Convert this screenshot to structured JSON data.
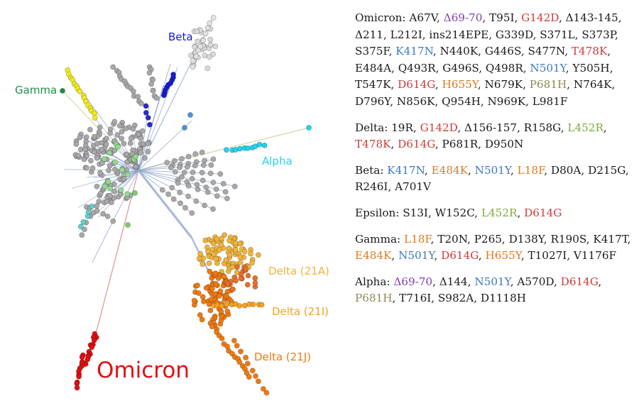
{
  "colors": {
    "default": "#1a1a1a",
    "red": "#cc3b3b",
    "blue": "#3b78c2",
    "purple": "#7a3fb0",
    "orange": "#e07a1e",
    "olive": "#8e8a55",
    "green": "#7dab3a",
    "alpha": "#22d3f0",
    "beta": "#1a1ad6",
    "gamma": "#1f8f4a",
    "delta_light": "#f0b43a",
    "delta_mid": "#f5a21f",
    "delta_dark": "#f07a10",
    "omicron": "#e11010",
    "yellow": "#f2ea1a",
    "node_gray": "#a8a8a8",
    "branch": "#8da3c9"
  },
  "tree": {
    "labels": {
      "beta": "Beta",
      "gamma": "Gamma",
      "alpha": "Alpha",
      "delta_21a": "Delta (21A)",
      "delta_21i": "Delta (21I)",
      "delta_21j": "Delta (21J)",
      "omicron": "Omicron"
    }
  },
  "variants": [
    {
      "name": "Omicron",
      "mutations": [
        {
          "text": "A67V",
          "color": "default"
        },
        {
          "text": "Δ69-70",
          "color": "purple"
        },
        {
          "text": "T95I",
          "color": "default"
        },
        {
          "text": "G142D",
          "color": "red"
        },
        {
          "text": "Δ143-145",
          "color": "default"
        },
        {
          "text": "Δ211",
          "color": "default"
        },
        {
          "text": "L212I",
          "color": "default"
        },
        {
          "text": "ins214EPE",
          "color": "default"
        },
        {
          "text": "G339D",
          "color": "default"
        },
        {
          "text": "S371L",
          "color": "default"
        },
        {
          "text": "S373P",
          "color": "default"
        },
        {
          "text": "S375F",
          "color": "default"
        },
        {
          "text": "K417N",
          "color": "blue"
        },
        {
          "text": "N440K",
          "color": "default"
        },
        {
          "text": "G446S",
          "color": "default"
        },
        {
          "text": "S477N",
          "color": "default"
        },
        {
          "text": "T478K",
          "color": "red"
        },
        {
          "text": "E484A",
          "color": "default"
        },
        {
          "text": "Q493R",
          "color": "default"
        },
        {
          "text": "G496S",
          "color": "default"
        },
        {
          "text": "Q498R",
          "color": "default"
        },
        {
          "text": "N501Y",
          "color": "blue"
        },
        {
          "text": "Y505H",
          "color": "default"
        },
        {
          "text": "T547K",
          "color": "default"
        },
        {
          "text": "D614G",
          "color": "red"
        },
        {
          "text": "H655Y",
          "color": "orange"
        },
        {
          "text": "N679K",
          "color": "default"
        },
        {
          "text": "P681H",
          "color": "olive"
        },
        {
          "text": "N764K",
          "color": "default"
        },
        {
          "text": "D796Y",
          "color": "default"
        },
        {
          "text": "N856K",
          "color": "default"
        },
        {
          "text": "Q954H",
          "color": "default"
        },
        {
          "text": "N969K",
          "color": "default"
        },
        {
          "text": "L981F",
          "color": "default"
        }
      ]
    },
    {
      "name": "Delta",
      "mutations": [
        {
          "text": "19R",
          "color": "default"
        },
        {
          "text": "G142D",
          "color": "red"
        },
        {
          "text": "Δ156-157",
          "color": "default"
        },
        {
          "text": "R158G",
          "color": "default"
        },
        {
          "text": "L452R",
          "color": "green"
        },
        {
          "text": "T478K",
          "color": "red"
        },
        {
          "text": "D614G",
          "color": "red"
        },
        {
          "text": "P681R",
          "color": "default"
        },
        {
          "text": "D950N",
          "color": "default"
        }
      ]
    },
    {
      "name": "Beta",
      "mutations": [
        {
          "text": "K417N",
          "color": "blue"
        },
        {
          "text": "E484K",
          "color": "orange"
        },
        {
          "text": "N501Y",
          "color": "blue"
        },
        {
          "text": "L18F",
          "color": "orange"
        },
        {
          "text": "D80A",
          "color": "default"
        },
        {
          "text": "D215G",
          "color": "default"
        },
        {
          "text": "R246I",
          "color": "default"
        },
        {
          "text": "A701V",
          "color": "default"
        }
      ]
    },
    {
      "name": "Epsilon",
      "mutations": [
        {
          "text": "S13I",
          "color": "default"
        },
        {
          "text": "W152C",
          "color": "default"
        },
        {
          "text": "L452R",
          "color": "green"
        },
        {
          "text": "D614G",
          "color": "red"
        }
      ]
    },
    {
      "name": "Gamma",
      "mutations": [
        {
          "text": "L18F",
          "color": "orange"
        },
        {
          "text": "T20N",
          "color": "default"
        },
        {
          "text": "P265",
          "color": "default"
        },
        {
          "text": "D138Y",
          "color": "default"
        },
        {
          "text": "R190S",
          "color": "default"
        },
        {
          "text": "K417T",
          "color": "default"
        },
        {
          "text": "E484K",
          "color": "orange"
        },
        {
          "text": "N501Y",
          "color": "blue"
        },
        {
          "text": "D614G",
          "color": "red"
        },
        {
          "text": "H655Y",
          "color": "orange"
        },
        {
          "text": "T1027I",
          "color": "default"
        },
        {
          "text": "V1176F",
          "color": "default"
        }
      ]
    },
    {
      "name": "Alpha",
      "mutations": [
        {
          "text": "Δ69-70",
          "color": "purple"
        },
        {
          "text": "Δ144",
          "color": "default"
        },
        {
          "text": "N501Y",
          "color": "blue"
        },
        {
          "text": "A570D",
          "color": "default"
        },
        {
          "text": "D614G",
          "color": "red"
        },
        {
          "text": "P681H",
          "color": "olive"
        },
        {
          "text": "T716I",
          "color": "default"
        },
        {
          "text": "S982A",
          "color": "default"
        },
        {
          "text": "D1118H",
          "color": "default"
        }
      ]
    }
  ]
}
